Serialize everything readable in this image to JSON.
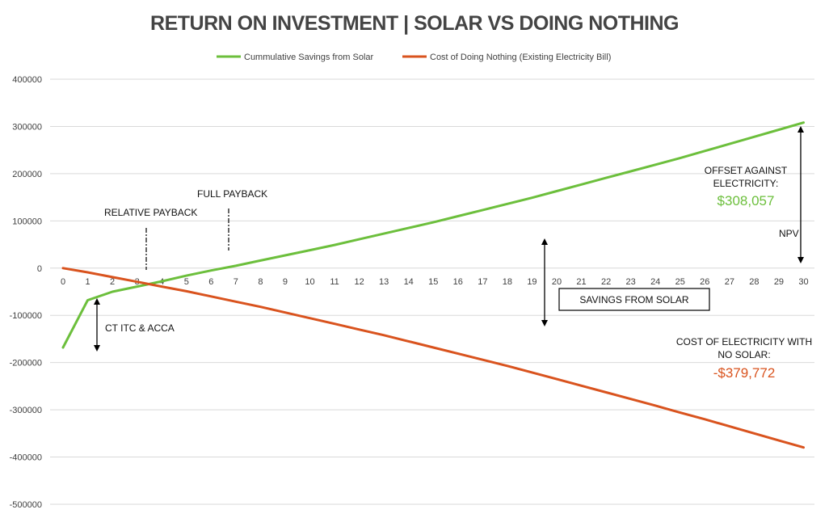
{
  "chart_data": {
    "type": "line",
    "title": "RETURN ON INVESTMENT  |  SOLAR VS DOING NOTHING",
    "x": [
      0,
      1,
      2,
      3,
      4,
      5,
      6,
      7,
      8,
      9,
      10,
      11,
      12,
      13,
      14,
      15,
      16,
      17,
      18,
      19,
      20,
      21,
      22,
      23,
      24,
      25,
      26,
      27,
      28,
      29,
      30
    ],
    "ylim": [
      -500000,
      400000
    ],
    "yticks": [
      "400000",
      "300000",
      "200000",
      "100000",
      "0",
      "-100000",
      "-200000",
      "-300000",
      "-400000",
      "-500000"
    ],
    "ytick_values": [
      400000,
      300000,
      200000,
      100000,
      0,
      -100000,
      -200000,
      -300000,
      -400000,
      -500000
    ],
    "grid": true,
    "legend_position": "top",
    "series": [
      {
        "name": "Cummulative Savings from Solar",
        "color": "#6cbf3c",
        "values": [
          -168000,
          -68000,
          -50000,
          -39000,
          -28000,
          -16000,
          -5000,
          5000,
          16000,
          27000,
          38000,
          49000,
          61000,
          73000,
          85000,
          97000,
          110000,
          123000,
          136000,
          149000,
          163000,
          177000,
          191000,
          205000,
          219000,
          233000,
          248000,
          263000,
          278000,
          293000,
          308057
        ]
      },
      {
        "name": "Cost of Doing Nothing (Existing Electricity Bill)",
        "color": "#d9531e",
        "values": [
          0,
          -9000,
          -19000,
          -29000,
          -39000,
          -49000,
          -60000,
          -71000,
          -82000,
          -94000,
          -106000,
          -118000,
          -130000,
          -142000,
          -155000,
          -168000,
          -181000,
          -194000,
          -207000,
          -221000,
          -235000,
          -249000,
          -263000,
          -277000,
          -291000,
          -306000,
          -320000,
          -335000,
          -350000,
          -365000,
          -379772
        ]
      }
    ],
    "annotations": {
      "relative_payback": "RELATIVE PAYBACK",
      "full_payback": "FULL PAYBACK",
      "ct_itc": "CT ITC & ACCA",
      "savings_box": "SAVINGS FROM SOLAR",
      "offset_line1": "OFFSET AGAINST",
      "offset_line2": "ELECTRICITY:",
      "offset_value": "$308,057",
      "npv": "NPV",
      "cost_line1": "COST OF ELECTRICITY WITH",
      "cost_line2": "NO SOLAR:",
      "cost_value": "-$379,772"
    }
  }
}
